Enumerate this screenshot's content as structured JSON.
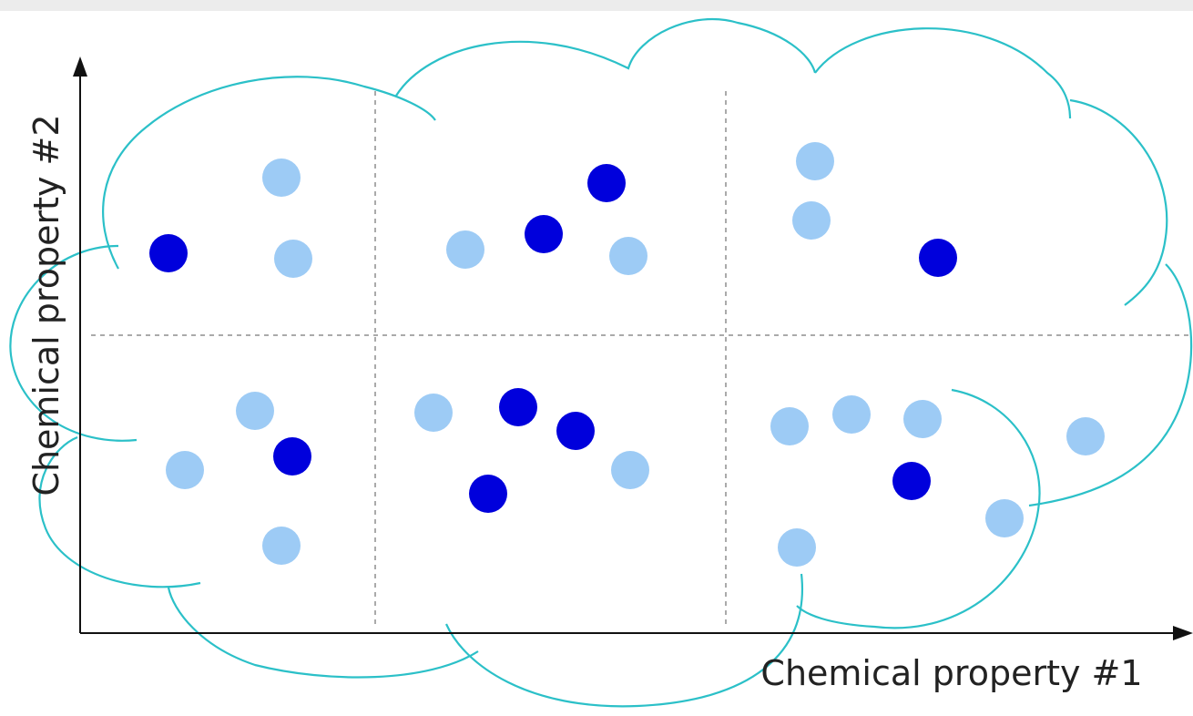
{
  "axes": {
    "x_label": "Chemical property #1",
    "y_label": "Chemical property #2"
  }
}
